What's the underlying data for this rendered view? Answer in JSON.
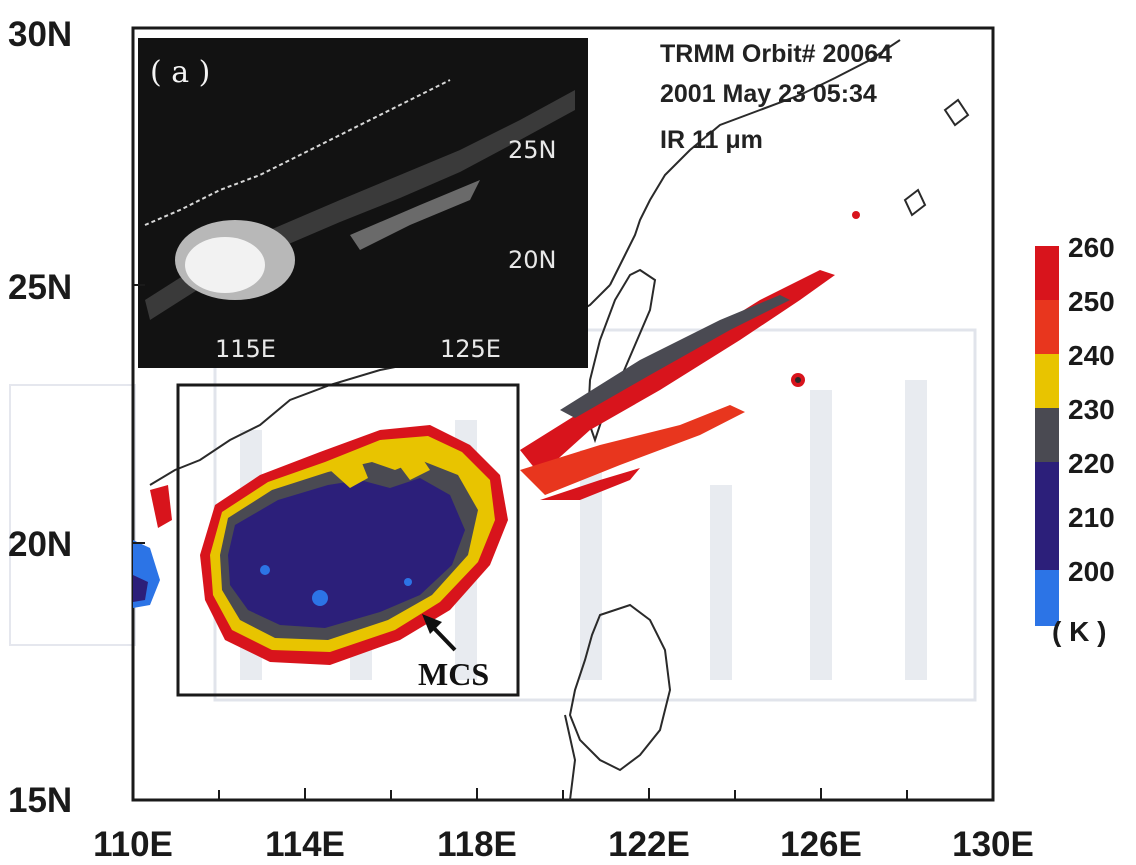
{
  "info": {
    "line1": "TRMM Orbit# 20064",
    "line2": "2001 May 23 05:34",
    "line3": "IR 11 μm"
  },
  "axes": {
    "x_ticks": [
      "110E",
      "114E",
      "118E",
      "122E",
      "126E",
      "130E"
    ],
    "y_ticks": [
      "30N",
      "25N",
      "20N",
      "15N"
    ],
    "x_range": [
      110,
      130
    ],
    "y_range": [
      15,
      30
    ]
  },
  "inset": {
    "panel_label": "( a )",
    "lat_labels": [
      "25N",
      "20N"
    ],
    "lon_labels": [
      "115E",
      "125E"
    ]
  },
  "annotation": {
    "label": "MCS"
  },
  "colorbar": {
    "unit": "( K )",
    "labels": [
      "260",
      "250",
      "240",
      "230",
      "220",
      "210",
      "200"
    ],
    "colors": [
      "#d8141c",
      "#e8361e",
      "#f06a1a",
      "#e8c400",
      "#4a4a52",
      "#2c1f7a",
      "#2c74e6"
    ]
  },
  "colors": {
    "very_cold": "#2c74e6",
    "cold_core": "#2c1f7a",
    "gray_band": "#4a4a52",
    "yellow": "#e8c400",
    "orange": "#f06a1a",
    "red": "#d8141c"
  }
}
